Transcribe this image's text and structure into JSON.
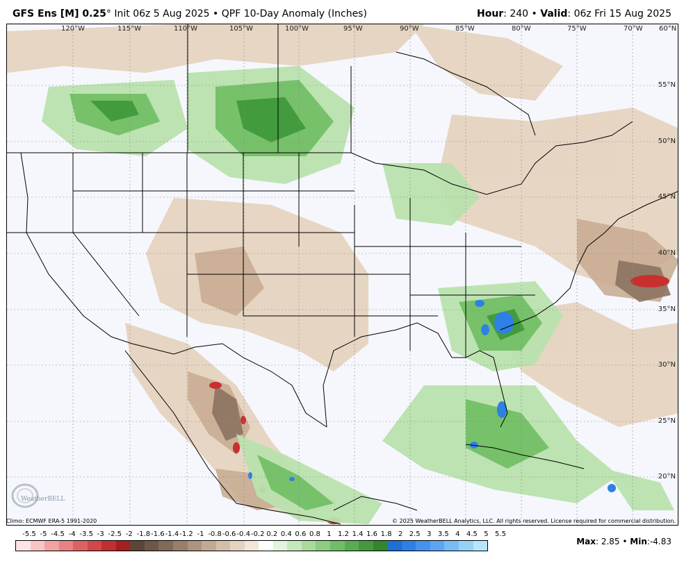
{
  "header": {
    "model": "GFS Ens [M] 0.25",
    "degree": "°",
    "init": "Init 06z 5 Aug 2025",
    "product": "QPF 10-Day Anomaly (Inches)",
    "hour_label": "Hour",
    "hour_value": ": 240",
    "valid_label": "Valid",
    "valid_value": ": 06z Fri 15 Aug 2025",
    "bullet": "•"
  },
  "longitudes": [
    "120°W",
    "115°W",
    "110°W",
    "105°W",
    "100°W",
    "95°W",
    "90°W",
    "85°W",
    "80°W",
    "75°W",
    "70°W",
    "60°N"
  ],
  "latitudes": [
    "55°N",
    "50°N",
    "45°N",
    "40°N",
    "35°N",
    "30°N",
    "25°N",
    "20°N"
  ],
  "footer": {
    "climo": "Climo: ECMWF ERA-5 1991-2020",
    "copyright": "© 2025 WeatherBELL Analytics, LLC. All rights reserved. License required for commercial distribution."
  },
  "logo_text": "WeatherBELL",
  "legend": {
    "ticks": [
      "-5.5",
      "-5",
      "-4.5",
      "-4",
      "-3.5",
      "-3",
      "-2.5",
      "-2",
      "-1.8",
      "-1.6",
      "-1.4",
      "-1.2",
      "-1",
      "-0.8",
      "-0.6",
      "-0.4",
      "-0.2",
      "0.2",
      "0.4",
      "0.6",
      "0.8",
      "1",
      "1.2",
      "1.4",
      "1.6",
      "1.8",
      "2",
      "2.5",
      "3",
      "3.5",
      "4",
      "4.5",
      "5",
      "5.5"
    ],
    "colors": [
      "#fde3e3",
      "#f9c4c4",
      "#f2a2a2",
      "#e98282",
      "#df6262",
      "#d24848",
      "#c03030",
      "#a41f1f",
      "#5b4637",
      "#6d5747",
      "#826a58",
      "#987f6c",
      "#ad9480",
      "#c3aa94",
      "#d5bea8",
      "#e5d2bf",
      "#f2e6d9",
      "#ffffff",
      "#e3f4dd",
      "#c6e8bd",
      "#a8db9c",
      "#8ccd80",
      "#71be66",
      "#58ad51",
      "#44993f",
      "#338530",
      "#1f6fd6",
      "#2f80e4",
      "#4692ec",
      "#5ca6f1",
      "#77bcf5",
      "#94d2f8",
      "#b5e6fb"
    ]
  },
  "stats": {
    "max_label": "Max",
    "max_value": ": 2.85",
    "min_label": "Min",
    "min_value": ":-4.83",
    "bullet": "•"
  }
}
